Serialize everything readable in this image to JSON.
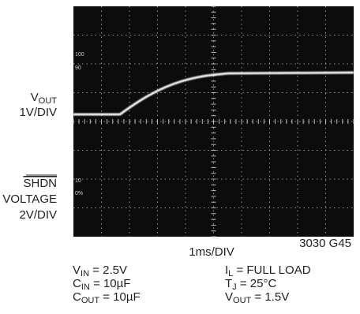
{
  "traces": {
    "vout": {
      "label": {
        "main": "V",
        "sub": "OUT"
      },
      "scale": "1V/DIV"
    },
    "shdn": {
      "label": "SHDN",
      "name": "VOLTAGE",
      "scale": "2V/DIV"
    }
  },
  "screen_marks": [
    "100",
    "90",
    "10",
    "0%"
  ],
  "time_scale": "1ms/DIV",
  "figure_id": "3030 G45",
  "conditions": {
    "left": [
      {
        "main": "V",
        "sub": "IN",
        "rest": " = 2.5V"
      },
      {
        "main": "C",
        "sub": "IN",
        "rest": " = 10µF"
      },
      {
        "main": "C",
        "sub": "OUT",
        "rest": " = 10µF"
      }
    ],
    "right": [
      {
        "main": "I",
        "sub": "L",
        "rest": " = FULL LOAD"
      },
      {
        "main": "T",
        "sub": "J",
        "rest": " = 25°C"
      },
      {
        "main": "V",
        "sub": "OUT",
        "rest": " = 1.5V"
      }
    ]
  }
}
